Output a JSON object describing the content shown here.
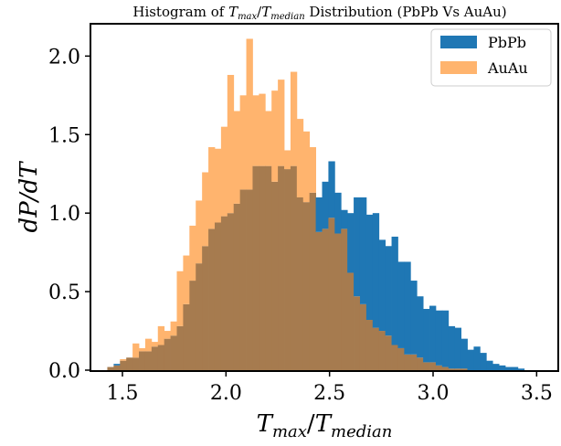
{
  "chart_data": {
    "type": "histogram",
    "title": "Histogram of T_max/T_median Distribution (PbPb Vs AuAu)",
    "title_parts": {
      "prefix": "Histogram of ",
      "math_T1": "T",
      "math_sub1": "max",
      "math_slash": "/",
      "math_T2": "T",
      "math_sub2": "median",
      "suffix": " Distribution (PbPb Vs AuAu)"
    },
    "xlabel": "T_max/T_median",
    "xlabel_parts": {
      "T1": "T",
      "sub1": "max",
      "slash": "/",
      "T2": "T",
      "sub2": "median"
    },
    "ylabel": "dP/dT",
    "xlim": [
      1.35,
      3.6
    ],
    "ylim": [
      0,
      2.2
    ],
    "xticks": [
      "1.5",
      "2.0",
      "2.5",
      "3.0",
      "3.5"
    ],
    "xtick_values": [
      1.5,
      2.0,
      2.5,
      3.0,
      3.5
    ],
    "yticks": [
      "0.0",
      "0.5",
      "1.0",
      "1.5",
      "2.0"
    ],
    "ytick_values": [
      0.0,
      0.5,
      1.0,
      1.5,
      2.0
    ],
    "legend_position": "top-right",
    "overlap_color": "#a67b4f",
    "series": [
      {
        "name": "PbPb",
        "color": "#1f77b4",
        "bin_start": 1.427,
        "bin_width": 0.0305,
        "values": [
          0.02,
          0.04,
          0.06,
          0.08,
          0.08,
          0.12,
          0.12,
          0.15,
          0.16,
          0.2,
          0.22,
          0.28,
          0.42,
          0.57,
          0.68,
          0.79,
          0.9,
          0.94,
          0.98,
          1.0,
          1.06,
          1.15,
          1.15,
          1.3,
          1.3,
          1.3,
          1.2,
          1.3,
          1.28,
          1.3,
          1.1,
          1.07,
          1.13,
          1.1,
          1.2,
          1.33,
          1.13,
          1.02,
          1.0,
          1.1,
          1.1,
          0.99,
          1.0,
          0.83,
          0.79,
          0.85,
          0.69,
          0.69,
          0.57,
          0.47,
          0.39,
          0.41,
          0.38,
          0.38,
          0.28,
          0.27,
          0.2,
          0.13,
          0.15,
          0.11,
          0.06,
          0.04,
          0.03,
          0.02,
          0.02,
          0.01
        ]
      },
      {
        "name": "AuAu",
        "color": "#ffb46e",
        "bin_start": 1.427,
        "bin_width": 0.0305,
        "values": [
          0.02,
          0.03,
          0.07,
          0.08,
          0.17,
          0.14,
          0.2,
          0.18,
          0.28,
          0.25,
          0.31,
          0.63,
          0.73,
          0.92,
          1.08,
          1.26,
          1.42,
          1.41,
          1.55,
          1.88,
          1.65,
          1.75,
          2.11,
          1.75,
          1.76,
          1.65,
          1.78,
          1.85,
          1.4,
          1.9,
          1.6,
          1.52,
          1.42,
          0.88,
          0.9,
          0.97,
          0.87,
          0.9,
          0.62,
          0.47,
          0.42,
          0.32,
          0.27,
          0.25,
          0.22,
          0.16,
          0.14,
          0.1,
          0.1,
          0.08,
          0.05,
          0.05,
          0.03,
          0.02,
          0.01,
          0.01,
          0.01,
          0,
          0,
          0,
          0,
          0,
          0,
          0,
          0,
          0
        ]
      }
    ]
  }
}
